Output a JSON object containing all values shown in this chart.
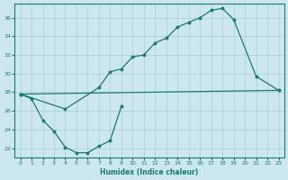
{
  "xlabel": "Humidex (Indice chaleur)",
  "bg_color": "#cce8ec",
  "line_color": "#1a7a6e",
  "grid_color": "#aacdd4",
  "xlim": [
    -0.5,
    23.5
  ],
  "ylim": [
    21.0,
    37.5
  ],
  "yticks": [
    22,
    24,
    26,
    28,
    30,
    32,
    34,
    36
  ],
  "xticks": [
    0,
    1,
    2,
    3,
    4,
    5,
    6,
    7,
    8,
    9,
    10,
    11,
    12,
    13,
    14,
    15,
    16,
    17,
    18,
    19,
    20,
    21,
    22,
    23
  ],
  "line1_x": [
    0,
    1,
    2,
    3,
    4,
    5,
    6,
    7,
    8,
    9
  ],
  "line1_y": [
    27.8,
    27.3,
    25.0,
    23.8,
    22.1,
    21.5,
    21.5,
    22.2,
    22.8,
    26.5
  ],
  "line2_x": [
    0,
    23
  ],
  "line2_y": [
    27.8,
    28.2
  ],
  "line3_x": [
    0,
    4,
    7,
    8,
    9,
    10,
    11,
    12,
    13,
    14,
    15,
    16,
    17,
    18,
    19,
    21,
    23
  ],
  "line3_y": [
    27.8,
    26.2,
    28.5,
    30.2,
    30.5,
    31.8,
    32.0,
    33.3,
    33.8,
    35.0,
    35.5,
    36.0,
    36.8,
    37.0,
    35.8,
    29.7,
    28.2
  ]
}
